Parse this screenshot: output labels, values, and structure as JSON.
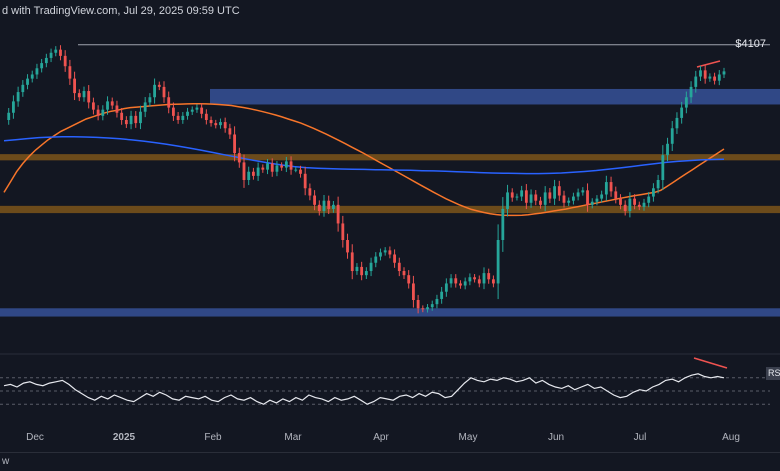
{
  "header": {
    "text": "d with TradingView.com, Jul 29, 2025 09:59 UTC"
  },
  "price_label": "$4107",
  "rsi_label": "RS",
  "footer_text": "w",
  "colors": {
    "background": "#131722",
    "bull": "#26a69a",
    "bear": "#ef5350",
    "ma_fast": "#f7752a",
    "ma_slow": "#2962ff",
    "resistance_zone": "#8b5e1a",
    "support_zone": "#3b5aa8",
    "rsi_line": "#e6e8ee",
    "divergence": "#ef5350"
  },
  "chart_data": [
    {
      "type": "candlestick",
      "title": "",
      "x_ticks": [
        "Dec",
        "2025",
        "Feb",
        "Mar",
        "Apr",
        "May",
        "Jun",
        "Jul",
        "Aug"
      ],
      "ylim": [
        1350,
        4250
      ],
      "levels": [
        {
          "label": "$4107",
          "value": 4107
        }
      ],
      "zones": [
        {
          "type": "supply",
          "color": "blue",
          "from": 3530,
          "to": 3680
        },
        {
          "type": "supply",
          "color": "orange",
          "from": 2990,
          "to": 3050
        },
        {
          "type": "demand",
          "color": "orange",
          "from": 2480,
          "to": 2550
        },
        {
          "type": "demand",
          "color": "blue",
          "from": 1480,
          "to": 1560
        }
      ],
      "close": [
        3380,
        3450,
        3560,
        3650,
        3720,
        3780,
        3820,
        3880,
        3930,
        3980,
        4030,
        4060,
        4000,
        3900,
        3780,
        3640,
        3600,
        3660,
        3550,
        3480,
        3420,
        3480,
        3560,
        3520,
        3450,
        3380,
        3340,
        3420,
        3350,
        3460,
        3550,
        3600,
        3720,
        3700,
        3600,
        3500,
        3420,
        3380,
        3420,
        3460,
        3480,
        3500,
        3440,
        3380,
        3350,
        3330,
        3360,
        3300,
        3240,
        3060,
        2970,
        2800,
        2880,
        2840,
        2920,
        2900,
        2960,
        2880,
        2940,
        2920,
        2980,
        2900,
        2900,
        2860,
        2720,
        2650,
        2560,
        2500,
        2600,
        2520,
        2560,
        2380,
        2220,
        2100,
        1920,
        1960,
        1880,
        1920,
        2000,
        2060,
        2100,
        2120,
        2080,
        2000,
        1920,
        1880,
        1800,
        1640,
        1560,
        1550,
        1570,
        1600,
        1650,
        1720,
        1800,
        1850,
        1800,
        1780,
        1820,
        1860,
        1840,
        1800,
        1900,
        1840,
        1800,
        2220,
        2520,
        2680,
        2630,
        2640,
        2700,
        2580,
        2660,
        2600,
        2560,
        2680,
        2620,
        2740,
        2650,
        2580,
        2600,
        2640,
        2680,
        2700,
        2560,
        2590,
        2620,
        2660,
        2780,
        2690,
        2620,
        2560,
        2500,
        2620,
        2560,
        2540,
        2580,
        2640,
        2720,
        2800,
        3040,
        3150,
        3300,
        3400,
        3500,
        3600,
        3700,
        3800,
        3860,
        3780,
        3800,
        3760,
        3820,
        3850
      ],
      "ma_fast": [
        2680,
        2780,
        2880,
        2960,
        3030,
        3090,
        3140,
        3190,
        3230,
        3270,
        3300,
        3330,
        3360,
        3390,
        3410,
        3430,
        3450,
        3465,
        3475,
        3490,
        3500,
        3505,
        3510,
        3515,
        3520,
        3525,
        3530,
        3532,
        3534,
        3536,
        3538,
        3538,
        3536,
        3534,
        3530,
        3525,
        3520,
        3510,
        3500,
        3488,
        3475,
        3460,
        3445,
        3428,
        3410,
        3390,
        3370,
        3350,
        3325,
        3300,
        3272,
        3244,
        3214,
        3184,
        3152,
        3120,
        3088,
        3056,
        3022,
        2988,
        2954,
        2920,
        2886,
        2852,
        2818,
        2784,
        2750,
        2716,
        2682,
        2650,
        2618,
        2590,
        2562,
        2538,
        2516,
        2500,
        2486,
        2474,
        2466,
        2460,
        2458,
        2458,
        2460,
        2465,
        2472,
        2480,
        2490,
        2500,
        2510,
        2520,
        2532,
        2544,
        2556,
        2568,
        2580,
        2592,
        2604,
        2616,
        2628,
        2640,
        2650,
        2660,
        2670,
        2680,
        2700,
        2740,
        2780,
        2820,
        2860,
        2900,
        2940,
        2980,
        3020,
        3060,
        3100
      ],
      "ma_slow": [
        3180,
        3190,
        3200,
        3210,
        3215,
        3218,
        3218,
        3216,
        3212,
        3206,
        3198,
        3188,
        3176,
        3162,
        3146,
        3128,
        3108,
        3088,
        3066,
        3044,
        3022,
        3000,
        2980,
        2960,
        2944,
        2930,
        2920,
        2914,
        2910,
        2906,
        2904,
        2902,
        2900,
        2898,
        2896,
        2894,
        2890,
        2888,
        2884,
        2880,
        2876,
        2872,
        2868,
        2866,
        2864,
        2862,
        2862,
        2864,
        2868,
        2874,
        2882,
        2892,
        2904,
        2916,
        2930,
        2944,
        2958,
        2970,
        2980,
        2988,
        2994,
        2998,
        3000
      ]
    },
    {
      "type": "line",
      "title": "RSI",
      "ylim": [
        0,
        100
      ],
      "levels": [
        70,
        50,
        30
      ],
      "values": [
        58,
        60,
        56,
        62,
        64,
        60,
        58,
        62,
        64,
        66,
        60,
        52,
        46,
        40,
        36,
        42,
        38,
        44,
        40,
        36,
        34,
        40,
        46,
        42,
        48,
        44,
        38,
        36,
        42,
        40,
        38,
        42,
        36,
        34,
        40,
        44,
        38,
        36,
        40,
        34,
        30,
        36,
        32,
        38,
        34,
        40,
        36,
        44,
        40,
        38,
        34,
        40,
        36,
        38,
        42,
        36,
        30,
        34,
        40,
        38,
        36,
        42,
        44,
        40,
        46,
        42,
        48,
        46,
        40,
        42,
        52,
        62,
        70,
        66,
        64,
        68,
        66,
        70,
        68,
        64,
        66,
        70,
        62,
        66,
        60,
        56,
        54,
        58,
        52,
        56,
        60,
        54,
        56,
        50,
        44,
        40,
        42,
        48,
        52,
        50,
        56,
        60,
        66,
        68,
        64,
        70,
        74,
        76,
        72,
        70,
        72,
        70
      ]
    }
  ]
}
